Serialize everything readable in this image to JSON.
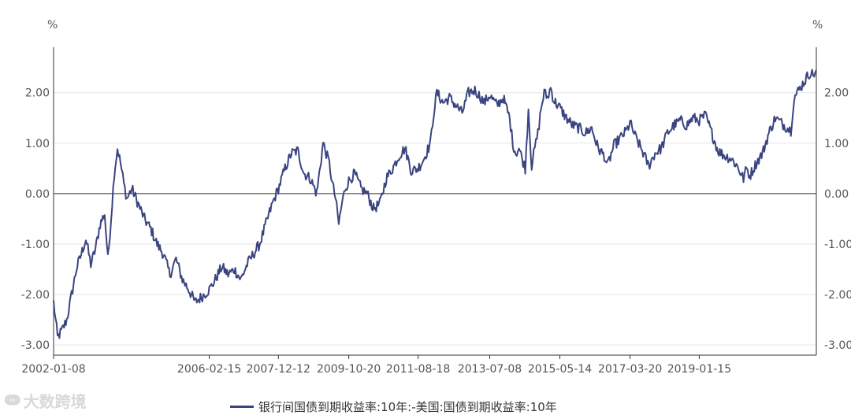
{
  "chart_data": {
    "type": "line",
    "y_unit_left": "%",
    "y_unit_right": "%",
    "ylim": [
      -3.2,
      2.9
    ],
    "y_ticks": [
      {
        "value": 2,
        "label": "2.00"
      },
      {
        "value": 1,
        "label": "1.00"
      },
      {
        "value": 0,
        "label": "0.00"
      },
      {
        "value": -1,
        "label": "-1.00"
      },
      {
        "value": -2,
        "label": "-2.00"
      },
      {
        "value": -3,
        "label": "-3.00"
      }
    ],
    "x_ticks": [
      "2002-01-08",
      "2006-02-15",
      "2007-12-12",
      "2009-10-20",
      "2011-08-18",
      "2013-07-08",
      "2015-05-14",
      "2017-03-20",
      "2019-01-15"
    ],
    "colors": {
      "series": "#3a4480",
      "axis": "#333333",
      "grid": "#e6e6e6",
      "zero_line": "#333333"
    },
    "series": [
      {
        "name": "银行间国债到期收益率:10年:-美国:国债到期收益率:10年",
        "points": [
          [
            "2002-01-08",
            -2.15
          ],
          [
            "2002-02-15",
            -2.85
          ],
          [
            "2002-04-01",
            -2.7
          ],
          [
            "2002-05-15",
            -2.5
          ],
          [
            "2002-07-01",
            -2.0
          ],
          [
            "2002-08-15",
            -1.5
          ],
          [
            "2002-10-01",
            -1.2
          ],
          [
            "2002-11-15",
            -0.9
          ],
          [
            "2003-01-01",
            -1.4
          ],
          [
            "2003-02-15",
            -1.1
          ],
          [
            "2003-04-01",
            -0.6
          ],
          [
            "2003-05-15",
            -0.4
          ],
          [
            "2003-06-15",
            -1.3
          ],
          [
            "2003-07-15",
            -0.5
          ],
          [
            "2003-08-15",
            0.4
          ],
          [
            "2003-09-15",
            0.9
          ],
          [
            "2003-10-15",
            0.6
          ],
          [
            "2003-11-15",
            0.2
          ],
          [
            "2003-12-15",
            -0.1
          ],
          [
            "2004-02-01",
            0.1
          ],
          [
            "2004-04-01",
            -0.2
          ],
          [
            "2004-06-01",
            -0.5
          ],
          [
            "2004-08-01",
            -0.7
          ],
          [
            "2004-10-01",
            -1.0
          ],
          [
            "2004-12-01",
            -1.2
          ],
          [
            "2005-02-01",
            -1.6
          ],
          [
            "2005-04-01",
            -1.3
          ],
          [
            "2005-06-01",
            -1.7
          ],
          [
            "2005-08-01",
            -1.9
          ],
          [
            "2005-10-01",
            -2.15
          ],
          [
            "2005-12-01",
            -2.05
          ],
          [
            "2006-02-15",
            -1.9
          ],
          [
            "2006-04-15",
            -1.7
          ],
          [
            "2006-06-15",
            -1.45
          ],
          [
            "2006-08-15",
            -1.6
          ],
          [
            "2006-10-15",
            -1.5
          ],
          [
            "2006-12-15",
            -1.7
          ],
          [
            "2007-02-15",
            -1.4
          ],
          [
            "2007-04-15",
            -1.2
          ],
          [
            "2007-06-15",
            -1.0
          ],
          [
            "2007-08-15",
            -0.6
          ],
          [
            "2007-10-15",
            -0.2
          ],
          [
            "2007-12-12",
            0.1
          ],
          [
            "2008-02-15",
            0.5
          ],
          [
            "2008-04-15",
            0.8
          ],
          [
            "2008-06-15",
            0.85
          ],
          [
            "2008-08-15",
            0.4
          ],
          [
            "2008-10-15",
            0.3
          ],
          [
            "2008-12-15",
            0.0
          ],
          [
            "2009-02-15",
            1.0
          ],
          [
            "2009-04-15",
            0.6
          ],
          [
            "2009-05-15",
            0.2
          ],
          [
            "2009-06-15",
            -0.1
          ],
          [
            "2009-07-15",
            -0.6
          ],
          [
            "2009-08-15",
            -0.2
          ],
          [
            "2009-09-15",
            0.1
          ],
          [
            "2009-10-20",
            0.25
          ],
          [
            "2009-12-15",
            0.4
          ],
          [
            "2010-02-15",
            0.1
          ],
          [
            "2010-04-15",
            0.0
          ],
          [
            "2010-06-15",
            -0.3
          ],
          [
            "2010-08-15",
            -0.2
          ],
          [
            "2010-10-15",
            0.3
          ],
          [
            "2010-12-15",
            0.5
          ],
          [
            "2011-02-15",
            0.75
          ],
          [
            "2011-04-15",
            0.9
          ],
          [
            "2011-06-15",
            0.45
          ],
          [
            "2011-08-18",
            0.5
          ],
          [
            "2011-10-15",
            0.7
          ],
          [
            "2011-12-15",
            1.0
          ],
          [
            "2012-01-15",
            1.6
          ],
          [
            "2012-02-15",
            2.0
          ],
          [
            "2012-04-15",
            1.8
          ],
          [
            "2012-06-15",
            1.9
          ],
          [
            "2012-08-15",
            1.75
          ],
          [
            "2012-10-15",
            1.6
          ],
          [
            "2012-12-15",
            2.0
          ],
          [
            "2013-02-15",
            2.05
          ],
          [
            "2013-04-15",
            1.9
          ],
          [
            "2013-05-15",
            1.8
          ],
          [
            "2013-07-08",
            1.95
          ],
          [
            "2013-09-15",
            1.75
          ],
          [
            "2013-11-15",
            1.9
          ],
          [
            "2014-01-15",
            1.5
          ],
          [
            "2014-02-15",
            1.0
          ],
          [
            "2014-03-15",
            0.8
          ],
          [
            "2014-04-15",
            0.9
          ],
          [
            "2014-05-15",
            0.7
          ],
          [
            "2014-06-15",
            0.5
          ],
          [
            "2014-07-15",
            1.7
          ],
          [
            "2014-08-15",
            0.55
          ],
          [
            "2014-09-15",
            0.9
          ],
          [
            "2014-10-15",
            1.2
          ],
          [
            "2014-11-15",
            1.7
          ],
          [
            "2014-12-15",
            2.0
          ],
          [
            "2015-01-15",
            1.9
          ],
          [
            "2015-02-15",
            2.1
          ],
          [
            "2015-03-15",
            1.85
          ],
          [
            "2015-05-14",
            1.7
          ],
          [
            "2015-07-15",
            1.5
          ],
          [
            "2015-09-15",
            1.35
          ],
          [
            "2015-11-15",
            1.3
          ],
          [
            "2016-01-15",
            1.2
          ],
          [
            "2016-03-15",
            1.3
          ],
          [
            "2016-05-15",
            0.9
          ],
          [
            "2016-07-15",
            0.75
          ],
          [
            "2016-08-15",
            0.55
          ],
          [
            "2016-10-15",
            0.95
          ],
          [
            "2016-12-15",
            1.1
          ],
          [
            "2017-02-15",
            1.25
          ],
          [
            "2017-03-20",
            1.4
          ],
          [
            "2017-05-15",
            1.1
          ],
          [
            "2017-07-15",
            0.85
          ],
          [
            "2017-09-15",
            0.55
          ],
          [
            "2017-11-15",
            0.8
          ],
          [
            "2018-01-15",
            0.9
          ],
          [
            "2018-03-15",
            1.2
          ],
          [
            "2018-05-15",
            1.35
          ],
          [
            "2018-07-15",
            1.45
          ],
          [
            "2018-09-15",
            1.35
          ],
          [
            "2018-11-15",
            1.5
          ],
          [
            "2019-01-15",
            1.45
          ],
          [
            "2019-03-15",
            1.55
          ],
          [
            "2019-05-15",
            1.2
          ],
          [
            "2019-07-15",
            0.85
          ],
          [
            "2019-09-15",
            0.75
          ],
          [
            "2019-11-15",
            0.7
          ],
          [
            "2020-01-15",
            0.55
          ],
          [
            "2020-03-15",
            0.3
          ],
          [
            "2020-04-15",
            0.5
          ],
          [
            "2020-05-15",
            0.35
          ],
          [
            "2020-07-15",
            0.6
          ],
          [
            "2020-09-15",
            0.8
          ],
          [
            "2020-11-15",
            1.2
          ],
          [
            "2021-01-15",
            1.5
          ],
          [
            "2021-03-15",
            1.4
          ],
          [
            "2021-05-15",
            1.3
          ],
          [
            "2021-06-15",
            1.25
          ],
          [
            "2021-07-15",
            1.9
          ],
          [
            "2021-08-15",
            2.0
          ],
          [
            "2021-10-15",
            2.2
          ],
          [
            "2021-12-15",
            2.4
          ],
          [
            "2022-01-15",
            2.35
          ],
          [
            "2022-02-15",
            2.45
          ]
        ]
      }
    ],
    "legend": {
      "position": "bottom-center"
    },
    "grid": true
  },
  "watermark": "大数跨境"
}
